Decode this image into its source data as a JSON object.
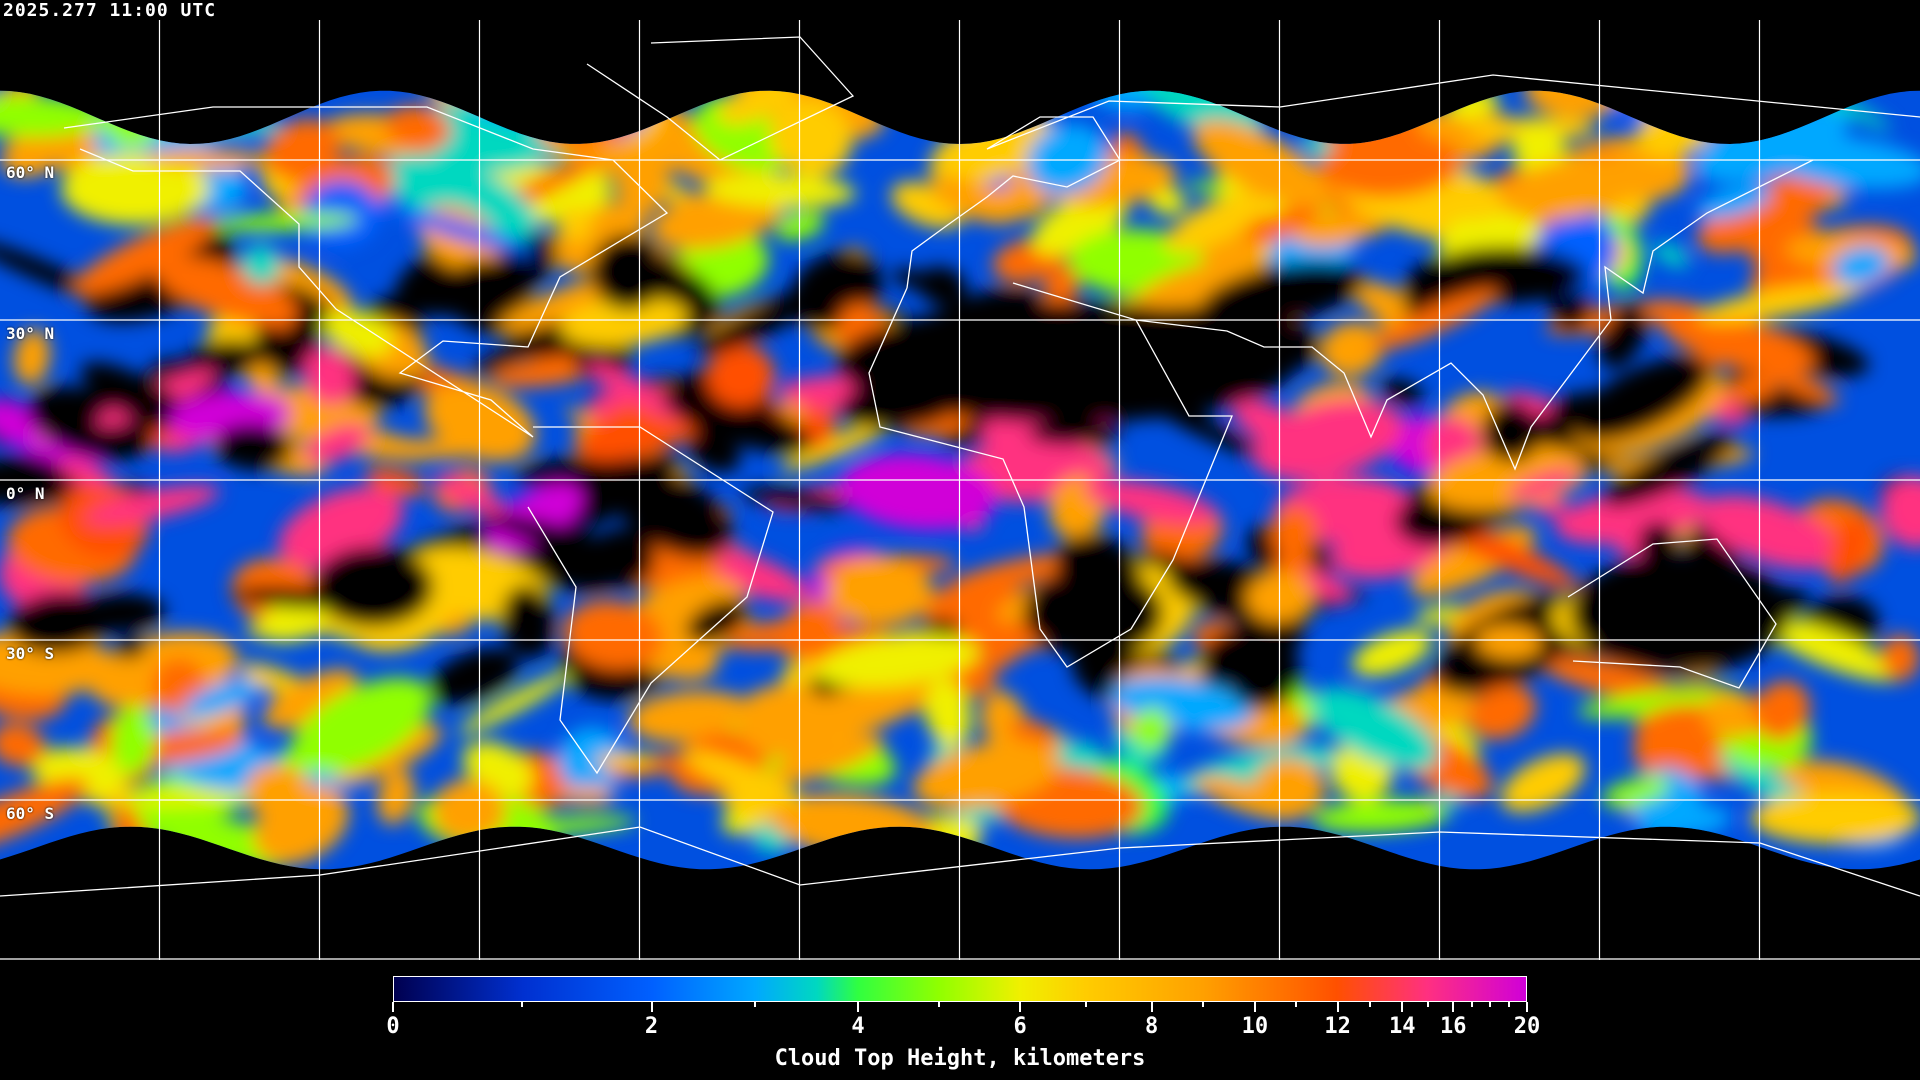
{
  "timestamp": "2025.277 11:00 UTC",
  "map": {
    "projection": "equirectangular",
    "grid_spacing_degrees": 30,
    "latitude_labels": [
      "60° N",
      "30° N",
      "0° N",
      "30° S",
      "60° S"
    ],
    "latitude_values": [
      60,
      30,
      0,
      -30,
      -60
    ],
    "background_color": "#000000",
    "coastline_color": "#ffffff",
    "gridline_color": "#ffffff"
  },
  "colorbar": {
    "title": "Cloud Top Height, kilometers",
    "min": 0,
    "max": 20,
    "tick_labels": [
      "0",
      "2",
      "4",
      "6",
      "8",
      "10",
      "12",
      "14",
      "16",
      "20"
    ],
    "tick_values": [
      0,
      2,
      4,
      6,
      8,
      10,
      12,
      14,
      16,
      20
    ],
    "minor_tick_values": [
      1,
      3,
      5,
      7,
      9,
      11,
      13,
      15,
      17,
      18,
      19
    ],
    "colormap": [
      {
        "value": 0,
        "color": "#000050"
      },
      {
        "value": 1,
        "color": "#0030d0"
      },
      {
        "value": 2,
        "color": "#0060ff"
      },
      {
        "value": 3,
        "color": "#00a8ff"
      },
      {
        "value": 3.6,
        "color": "#00d8c0"
      },
      {
        "value": 4,
        "color": "#30ff40"
      },
      {
        "value": 5,
        "color": "#90ff00"
      },
      {
        "value": 6,
        "color": "#f0f000"
      },
      {
        "value": 7,
        "color": "#ffcc00"
      },
      {
        "value": 9,
        "color": "#ffa000"
      },
      {
        "value": 11,
        "color": "#ff6a00"
      },
      {
        "value": 12,
        "color": "#ff5000"
      },
      {
        "value": 15,
        "color": "#ff3080"
      },
      {
        "value": 20,
        "color": "#d000d8"
      }
    ]
  }
}
